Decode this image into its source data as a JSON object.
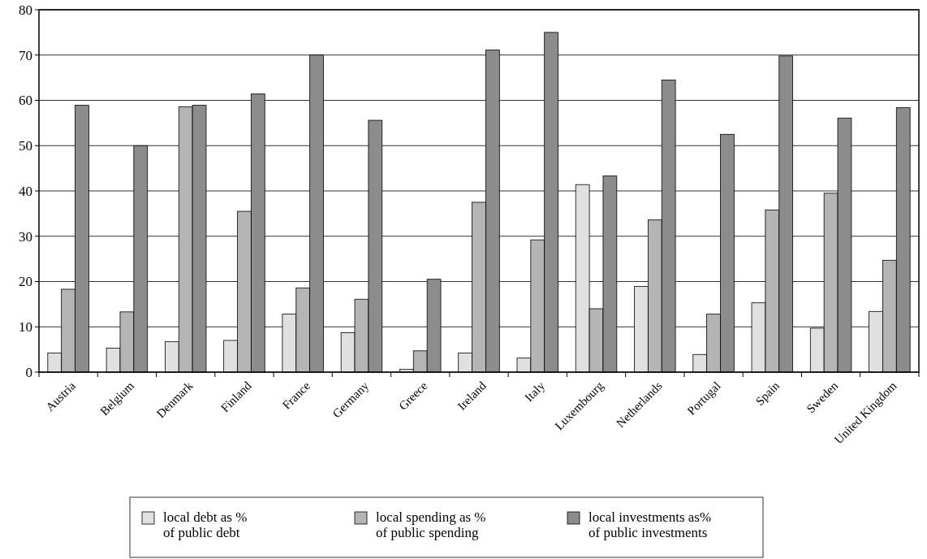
{
  "chart_data": {
    "type": "bar",
    "categories": [
      "Austria",
      "Belgium",
      "Denmark",
      "Finland",
      "France",
      "Germany",
      "Greece",
      "Ireland",
      "Italy",
      "Luxembourg",
      "Netherlands",
      "Portugal",
      "Spain",
      "Sweden",
      "United Kingdom"
    ],
    "series": [
      {
        "name": "local debt as %\nof public debt",
        "color": "#e0e0e0",
        "values": [
          4.2,
          5.3,
          6.7,
          7.0,
          12.8,
          8.7,
          0.6,
          4.2,
          3.1,
          41.4,
          18.9,
          3.9,
          15.3,
          9.7,
          13.4
        ]
      },
      {
        "name": "local spending as %\nof public spending",
        "color": "#b4b4b4",
        "values": [
          18.3,
          13.3,
          58.6,
          35.5,
          18.6,
          16.1,
          4.7,
          37.5,
          29.2,
          14.0,
          33.6,
          12.8,
          35.8,
          39.5,
          24.7
        ]
      },
      {
        "name": "local investments as%\nof public investments",
        "color": "#8c8c8c",
        "values": [
          58.9,
          50,
          58.9,
          61.4,
          70,
          55.6,
          20.5,
          71.1,
          75,
          43.3,
          64.5,
          52.5,
          69.8,
          56.1,
          58.4
        ]
      }
    ],
    "ylim": [
      0,
      80
    ],
    "yticks": [
      0,
      10,
      20,
      30,
      40,
      50,
      60,
      70,
      80
    ],
    "grid": "y",
    "legend": "bottom"
  }
}
